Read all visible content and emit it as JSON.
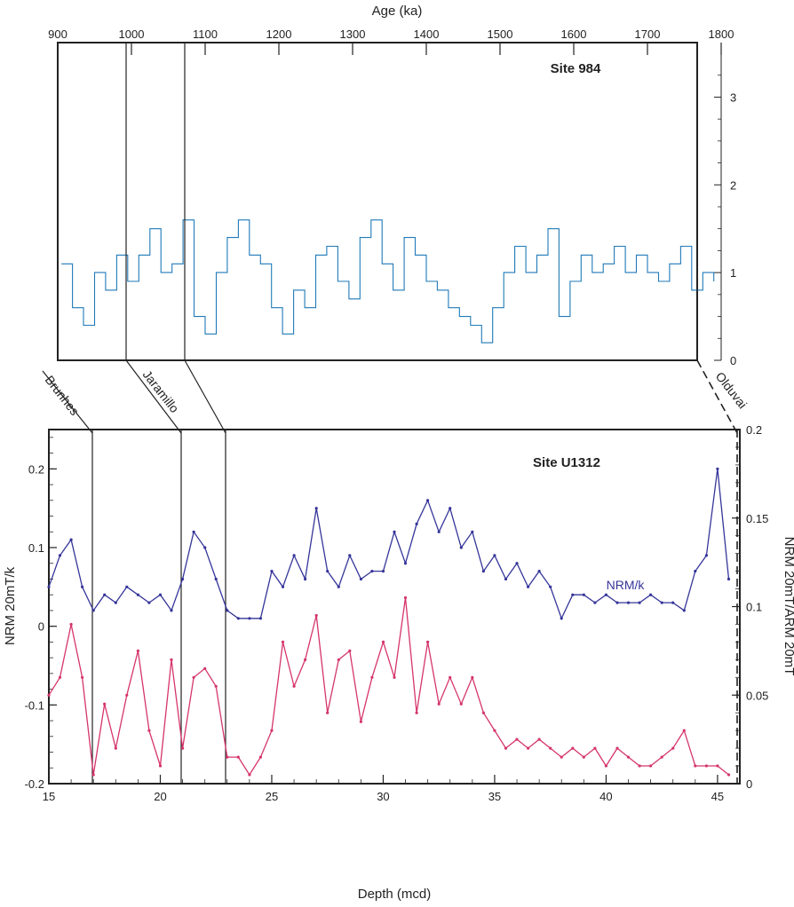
{
  "chart_data": [
    {
      "type": "line",
      "title": "Site 984",
      "xlabel": "Age (ka)",
      "ylabel": "",
      "xlim": [
        900,
        1800
      ],
      "ylim": [
        0,
        3.5
      ],
      "x_ticks": [
        900,
        1000,
        1100,
        1200,
        1300,
        1400,
        1500,
        1600,
        1700,
        1800
      ],
      "y_ticks": [
        0,
        1,
        2,
        3
      ],
      "series_color": "#1f7ab8",
      "chron_boundaries_age": [
        1000,
        1078,
        1765
      ],
      "x": [
        905,
        920,
        935,
        950,
        965,
        980,
        995,
        1010,
        1025,
        1040,
        1055,
        1070,
        1085,
        1100,
        1115,
        1130,
        1145,
        1160,
        1175,
        1190,
        1205,
        1220,
        1235,
        1250,
        1265,
        1280,
        1295,
        1310,
        1325,
        1340,
        1355,
        1370,
        1385,
        1400,
        1415,
        1430,
        1445,
        1460,
        1475,
        1490,
        1505,
        1520,
        1535,
        1550,
        1565,
        1580,
        1595,
        1610,
        1625,
        1640,
        1655,
        1670,
        1685,
        1700,
        1715,
        1730,
        1745,
        1760,
        1775,
        1790
      ],
      "y": [
        1.1,
        0.6,
        0.4,
        1.0,
        0.8,
        1.2,
        0.9,
        1.2,
        1.5,
        1.0,
        1.1,
        1.6,
        0.5,
        0.3,
        1.0,
        1.4,
        1.6,
        1.2,
        1.1,
        0.6,
        0.3,
        0.8,
        0.6,
        1.2,
        1.3,
        0.9,
        0.7,
        1.4,
        1.6,
        1.1,
        0.8,
        1.4,
        1.2,
        0.9,
        0.8,
        0.6,
        0.5,
        0.4,
        0.2,
        0.6,
        1.0,
        1.3,
        1.0,
        1.2,
        1.5,
        0.5,
        0.9,
        1.2,
        1.0,
        1.1,
        1.3,
        1.0,
        1.2,
        1.0,
        0.9,
        1.1,
        1.3,
        0.8,
        1.0,
        0.9
      ]
    },
    {
      "type": "line",
      "title": "Site U1312",
      "xlabel": "Depth (mcd)",
      "ylabel": "NRM 20mT/k",
      "y2label": "NRM 20mT/ARM 20mT",
      "xlim": [
        15,
        46
      ],
      "ylim": [
        -0.2,
        0.25
      ],
      "y2lim": [
        0,
        0.2
      ],
      "x_ticks": [
        15,
        20,
        25,
        30,
        35,
        40,
        45
      ],
      "y_ticks": [
        -0.2,
        -0.1,
        0,
        0.1,
        0.2
      ],
      "y2_ticks": [
        0,
        0.05,
        0.1,
        0.15,
        0.2
      ],
      "chron_boundaries_depth": [
        16.9,
        20.9,
        22.9,
        45.9
      ],
      "series": [
        {
          "name": "NRM/k",
          "axis": "left",
          "color": "#35359a",
          "x": [
            15.0,
            15.5,
            16.0,
            16.5,
            17.0,
            17.5,
            18.0,
            18.5,
            19.0,
            19.5,
            20.0,
            20.5,
            21.0,
            21.5,
            22.0,
            22.5,
            23.0,
            23.5,
            24.0,
            24.5,
            25.0,
            25.5,
            26.0,
            26.5,
            27.0,
            27.5,
            28.0,
            28.5,
            29.0,
            29.5,
            30.0,
            30.5,
            31.0,
            31.5,
            32.0,
            32.5,
            33.0,
            33.5,
            34.0,
            34.5,
            35.0,
            35.5,
            36.0,
            36.5,
            37.0,
            37.5,
            38.0,
            38.5,
            39.0,
            39.5,
            40.0,
            40.5,
            41.0,
            41.5,
            42.0,
            42.5,
            43.0,
            43.5,
            44.0,
            44.5,
            45.0,
            45.5
          ],
          "y": [
            0.05,
            0.09,
            0.11,
            0.05,
            0.02,
            0.04,
            0.03,
            0.05,
            0.04,
            0.03,
            0.04,
            0.02,
            0.06,
            0.12,
            0.1,
            0.06,
            0.02,
            0.01,
            0.01,
            0.01,
            0.07,
            0.05,
            0.09,
            0.06,
            0.15,
            0.07,
            0.05,
            0.09,
            0.06,
            0.07,
            0.07,
            0.12,
            0.08,
            0.13,
            0.16,
            0.12,
            0.15,
            0.1,
            0.12,
            0.07,
            0.09,
            0.06,
            0.08,
            0.05,
            0.07,
            0.05,
            0.01,
            0.04,
            0.04,
            0.03,
            0.04,
            0.03,
            0.03,
            0.03,
            0.04,
            0.03,
            0.03,
            0.02,
            0.07,
            0.09,
            0.2,
            0.06
          ]
        },
        {
          "name": "",
          "axis": "right",
          "color": "#d5356a",
          "x": [
            15.0,
            15.5,
            16.0,
            16.5,
            17.0,
            17.5,
            18.0,
            18.5,
            19.0,
            19.5,
            20.0,
            20.5,
            21.0,
            21.5,
            22.0,
            22.5,
            23.0,
            23.5,
            24.0,
            24.5,
            25.0,
            25.5,
            26.0,
            26.5,
            27.0,
            27.5,
            28.0,
            28.5,
            29.0,
            29.5,
            30.0,
            30.5,
            31.0,
            31.5,
            32.0,
            32.5,
            33.0,
            33.5,
            34.0,
            34.5,
            35.0,
            35.5,
            36.0,
            36.5,
            37.0,
            37.5,
            38.0,
            38.5,
            39.0,
            39.5,
            40.0,
            40.5,
            41.0,
            41.5,
            42.0,
            42.5,
            43.0,
            43.5,
            44.0,
            44.5,
            45.0,
            45.5
          ],
          "y": [
            0.05,
            0.06,
            0.09,
            0.06,
            0.005,
            0.045,
            0.02,
            0.05,
            0.075,
            0.03,
            0.01,
            0.07,
            0.02,
            0.06,
            0.065,
            0.055,
            0.015,
            0.015,
            0.005,
            0.015,
            0.03,
            0.08,
            0.055,
            0.07,
            0.095,
            0.04,
            0.07,
            0.075,
            0.035,
            0.06,
            0.08,
            0.06,
            0.105,
            0.04,
            0.08,
            0.045,
            0.06,
            0.045,
            0.06,
            0.04,
            0.03,
            0.02,
            0.025,
            0.02,
            0.025,
            0.02,
            0.015,
            0.02,
            0.015,
            0.02,
            0.01,
            0.02,
            0.015,
            0.01,
            0.01,
            0.015,
            0.02,
            0.03,
            0.01,
            0.01,
            0.01,
            0.005
          ]
        }
      ]
    }
  ],
  "chron_labels": [
    "Brunhes",
    "Jaramillo",
    "Olduvai"
  ]
}
